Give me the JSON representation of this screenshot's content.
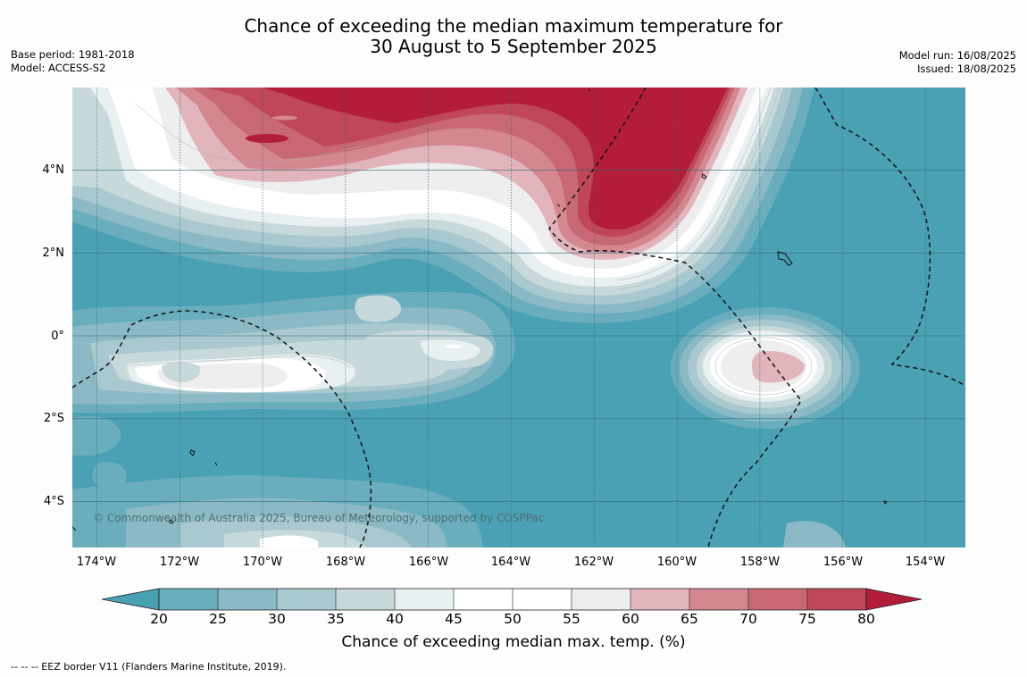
{
  "title": {
    "line1": "Chance of exceeding the median maximum temperature for",
    "line2": "30 August to 5 September 2025"
  },
  "meta_left": {
    "base_period": "Base period: 1981-2018",
    "model": "Model: ACCESS-S2"
  },
  "meta_right": {
    "model_run": "Model run: 16/08/2025",
    "issued": "Issued: 18/08/2025"
  },
  "map": {
    "lat_labels": [
      "4°N",
      "2°N",
      "0°",
      "2°S",
      "4°S"
    ],
    "lon_labels": [
      "174°W",
      "172°W",
      "170°W",
      "168°W",
      "166°W",
      "164°W",
      "162°W",
      "160°W",
      "158°W",
      "156°W",
      "154°W"
    ],
    "credit": "© Commonwealth of Australia 2025, Bureau of Meteorology, supported by COSPPac",
    "ocean_color": "#4aa1b4",
    "warm_color": "#b31d3a"
  },
  "colorbar": {
    "title": "Chance of exceeding median max. temp. (%)",
    "ticks": [
      "20",
      "25",
      "30",
      "35",
      "40",
      "45",
      "50",
      "55",
      "60",
      "65",
      "70",
      "75",
      "80"
    ],
    "colors": [
      "#4aa1b4",
      "#6aaebd",
      "#8bbac6",
      "#a9c8cf",
      "#c8d9dc",
      "#e9f0f2",
      "#ffffff",
      "#ffffff",
      "#eeeeee",
      "#e2b4bb",
      "#d4878f",
      "#c76874",
      "#bf4757",
      "#b31d3a"
    ]
  },
  "footnote": "--  --  -- EEZ border V11 (Flanders Marine Institute, 2019)."
}
